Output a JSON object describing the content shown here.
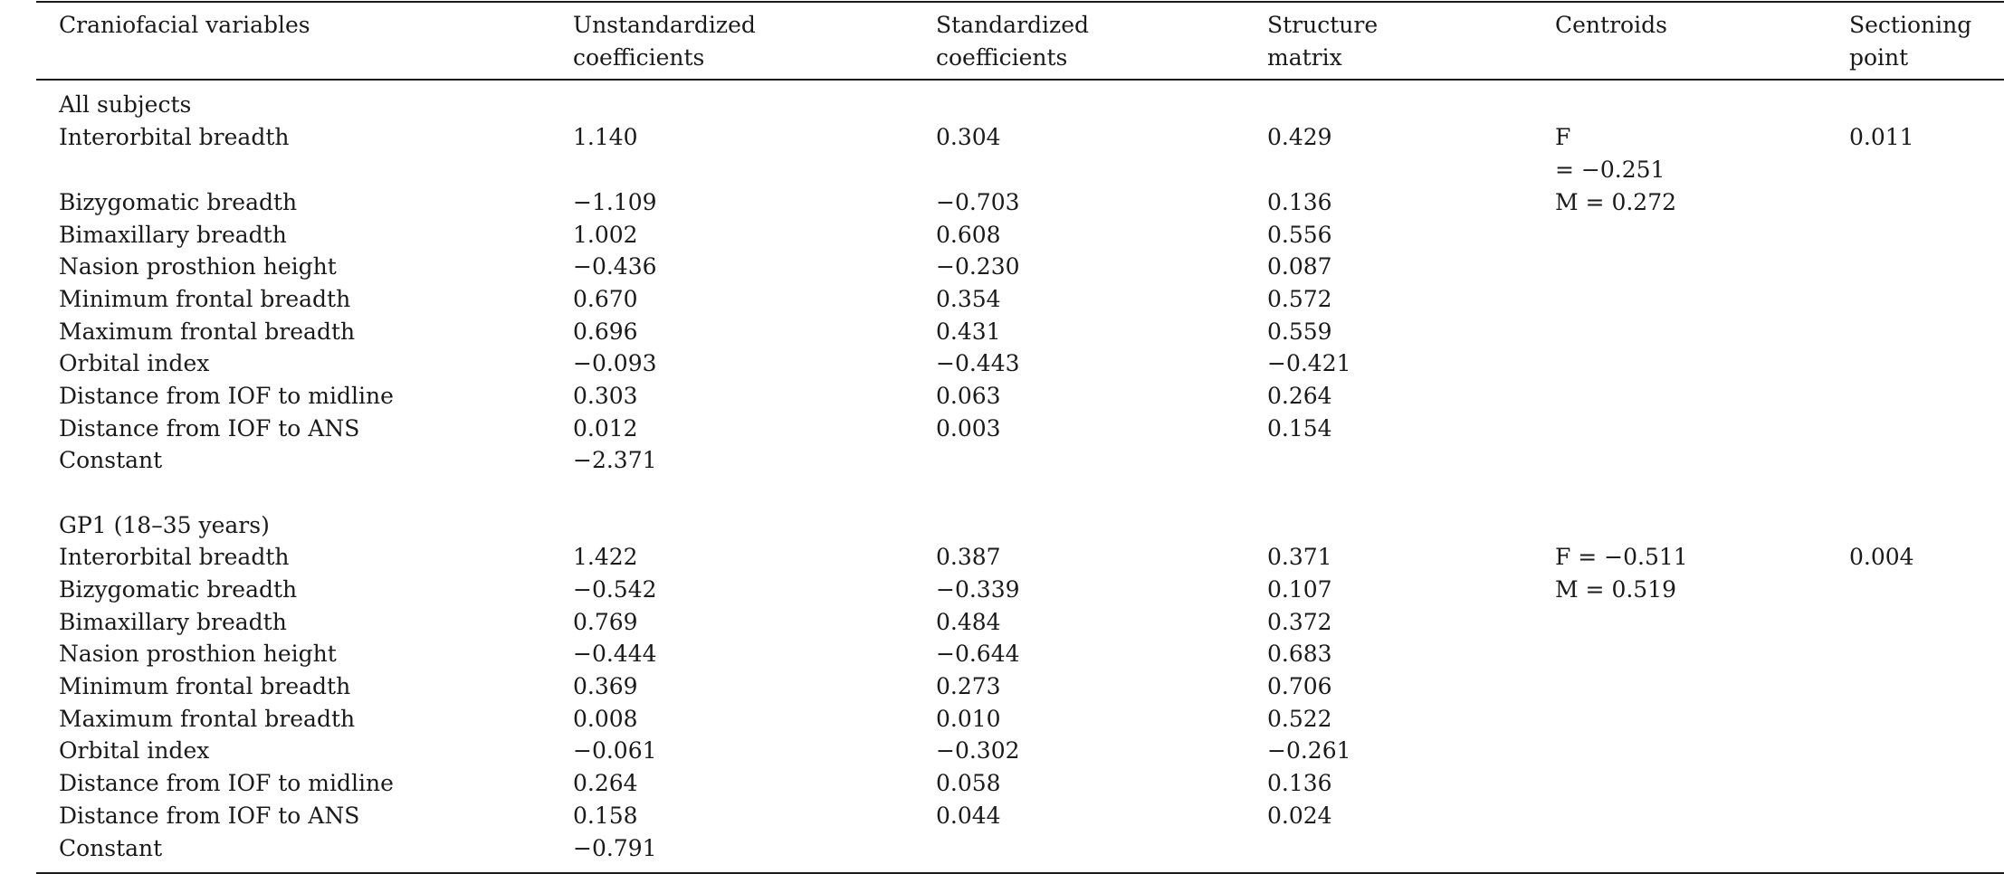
{
  "headers": [
    [
      "Craniofacial variables"
    ],
    [
      "Unstandardized",
      "coefficients"
    ],
    [
      "Standardized",
      "coefficients"
    ],
    [
      "Structure",
      "matrix"
    ],
    [
      "Centroids"
    ],
    [
      "Sectioning",
      "point"
    ]
  ],
  "sections": [
    {
      "title": "All subjects",
      "rows": [
        {
          "variable": "Interorbital breadth",
          "unstd": "1.140",
          "std": "0.304",
          "structure": "0.429"
        },
        {
          "variable": "Bizygomatic breadth",
          "unstd": "−1.109",
          "std": "−0.703",
          "structure": "0.136"
        },
        {
          "variable": "Bimaxillary breadth",
          "unstd": "1.002",
          "std": "0.608",
          "structure": "0.556"
        },
        {
          "variable": "Nasion prosthion height",
          "unstd": "−0.436",
          "std": "−0.230",
          "structure": "0.087"
        },
        {
          "variable": "Minimum frontal breadth",
          "unstd": "0.670",
          "std": "0.354",
          "structure": "0.572"
        },
        {
          "variable": "Maximum frontal breadth",
          "unstd": "0.696",
          "std": "0.431",
          "structure": "0.559"
        },
        {
          "variable": "Orbital index",
          "unstd": "−0.093",
          "std": "−0.443",
          "structure": "−0.421"
        },
        {
          "variable": "Distance from IOF to midline",
          "unstd": "0.303",
          "std": "0.063",
          "structure": "0.264"
        },
        {
          "variable": "Distance from IOF to ANS",
          "unstd": "0.012",
          "std": "0.003",
          "structure": "0.154"
        },
        {
          "variable": "Constant",
          "unstd": "−2.371",
          "std": "",
          "structure": ""
        }
      ],
      "centroids": [
        "F",
        "= −0.251",
        "M = 0.272"
      ],
      "sectioning_point": "0.011"
    },
    {
      "title": "GP1 (18–35 years)",
      "rows": [
        {
          "variable": "Interorbital breadth",
          "unstd": "1.422",
          "std": "0.387",
          "structure": "0.371"
        },
        {
          "variable": "Bizygomatic breadth",
          "unstd": "−0.542",
          "std": "−0.339",
          "structure": "0.107"
        },
        {
          "variable": "Bimaxillary breadth",
          "unstd": "0.769",
          "std": "0.484",
          "structure": "0.372"
        },
        {
          "variable": "Nasion prosthion height",
          "unstd": "−0.444",
          "std": "−0.644",
          "structure": "0.683"
        },
        {
          "variable": "Minimum frontal breadth",
          "unstd": "0.369",
          "std": "0.273",
          "structure": "0.706"
        },
        {
          "variable": "Maximum frontal breadth",
          "unstd": "0.008",
          "std": "0.010",
          "structure": "0.522"
        },
        {
          "variable": "Orbital index",
          "unstd": "−0.061",
          "std": "−0.302",
          "structure": "−0.261"
        },
        {
          "variable": "Distance from IOF to midline",
          "unstd": "0.264",
          "std": "0.058",
          "structure": "0.136"
        },
        {
          "variable": "Distance from IOF to ANS",
          "unstd": "0.158",
          "std": "0.044",
          "structure": "0.024"
        },
        {
          "variable": "Constant",
          "unstd": "−0.791",
          "std": "",
          "structure": ""
        }
      ],
      "centroids": [
        "F = −0.511",
        "M = 0.519"
      ],
      "sectioning_point": "0.004"
    }
  ]
}
